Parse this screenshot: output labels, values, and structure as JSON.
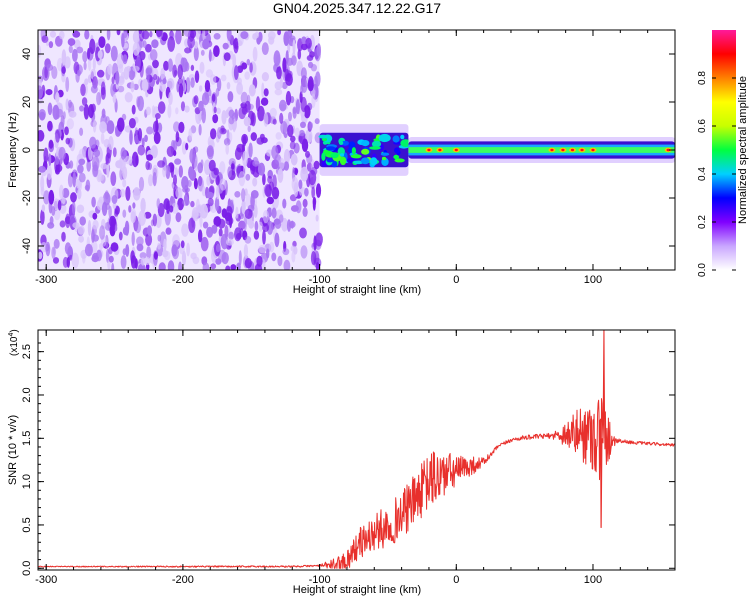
{
  "title": "GN04.2025.347.12.22.G17",
  "chart_data": [
    {
      "type": "heatmap",
      "xlabel": "Height of straight line (km)",
      "ylabel": "Frequency (Hz)",
      "xlim": [
        -306,
        160
      ],
      "ylim": [
        -50,
        50
      ],
      "x_ticks": [
        -300,
        -200,
        -100,
        0,
        100
      ],
      "x_tick_labels": [
        "-300",
        "-200",
        "-100",
        "0",
        "100"
      ],
      "y_ticks": [
        -40,
        -20,
        0,
        20,
        40
      ],
      "y_tick_labels": [
        "-40",
        "-20",
        "0",
        "20",
        "40"
      ],
      "noise_region": {
        "x_from": -306,
        "x_to": -100,
        "y_from": -50,
        "y_to": 50
      },
      "band_segments": [
        {
          "x_from": -100,
          "x_to": -35,
          "half_width_hz": 6,
          "style": "scattered"
        },
        {
          "x_from": -35,
          "x_to": 160,
          "half_width_hz": 3,
          "style": "steady"
        }
      ],
      "hot_spots": [
        -20,
        -12,
        0,
        70,
        78,
        85,
        92,
        100,
        155
      ],
      "colorbar": {
        "label": "Normalized spectral amplitude",
        "range": [
          0,
          1
        ],
        "ticks": [
          0.0,
          0.2,
          0.4,
          0.6,
          0.8
        ],
        "tick_labels": [
          "0.0",
          "0.2",
          "0.4",
          "0.6",
          "0.8"
        ],
        "colormap": [
          "#ffffff",
          "#c9a6ff",
          "#8000ff",
          "#0000ff",
          "#00d0ff",
          "#00ff40",
          "#c8ff00",
          "#ffff00",
          "#ff8000",
          "#ff0000",
          "#ff1a9a"
        ]
      },
      "grid": false
    },
    {
      "type": "line",
      "xlabel": "Height of straight line (km)",
      "ylabel": "SNR (10 * v/v)",
      "multiplier_base": "(x10",
      "multiplier_exp": "4",
      "multiplier_close": ")",
      "xlim": [
        -306,
        160
      ],
      "ylim": [
        -0.02,
        2.75
      ],
      "x_ticks": [
        -300,
        -200,
        -100,
        0,
        100
      ],
      "x_tick_labels": [
        "-300",
        "-200",
        "-100",
        "0",
        "100"
      ],
      "y_ticks": [
        0.0,
        0.5,
        1.0,
        1.5,
        2.0,
        2.5
      ],
      "y_tick_labels": [
        "0.0",
        "0.5",
        "1.0",
        "1.5",
        "2.0",
        "2.5"
      ],
      "series": [
        {
          "color": "#e8302c",
          "points": [
            [
              -306,
              0.02
            ],
            [
              -250,
              0.02
            ],
            [
              -200,
              0.02
            ],
            [
              -150,
              0.02
            ],
            [
              -120,
              0.02
            ],
            [
              -100,
              0.03
            ],
            [
              -90,
              0.04
            ],
            [
              -85,
              0.05
            ],
            [
              -80,
              0.1
            ],
            [
              -75,
              0.2
            ],
            [
              -70,
              0.3
            ],
            [
              -65,
              0.35
            ],
            [
              -60,
              0.4
            ],
            [
              -55,
              0.45
            ],
            [
              -50,
              0.5
            ],
            [
              -45,
              0.55
            ],
            [
              -40,
              0.62
            ],
            [
              -35,
              0.7
            ],
            [
              -30,
              0.8
            ],
            [
              -25,
              0.9
            ],
            [
              -20,
              1.0
            ],
            [
              -15,
              1.05
            ],
            [
              -10,
              1.08
            ],
            [
              -5,
              1.1
            ],
            [
              0,
              1.12
            ],
            [
              5,
              1.15
            ],
            [
              10,
              1.18
            ],
            [
              15,
              1.2
            ],
            [
              20,
              1.23
            ],
            [
              25,
              1.3
            ],
            [
              30,
              1.4
            ],
            [
              40,
              1.48
            ],
            [
              50,
              1.51
            ],
            [
              60,
              1.52
            ],
            [
              70,
              1.53
            ],
            [
              80,
              1.55
            ],
            [
              90,
              1.56
            ],
            [
              100,
              1.55
            ],
            [
              110,
              1.5
            ],
            [
              120,
              1.47
            ],
            [
              130,
              1.45
            ],
            [
              140,
              1.44
            ],
            [
              150,
              1.43
            ],
            [
              160,
              1.42
            ]
          ],
          "noise_amplitude": [
            [
              -306,
              0.005
            ],
            [
              -100,
              0.01
            ],
            [
              -85,
              0.1
            ],
            [
              -70,
              0.18
            ],
            [
              -50,
              0.25
            ],
            [
              -30,
              0.3
            ],
            [
              -15,
              0.35
            ],
            [
              0,
              0.18
            ],
            [
              10,
              0.12
            ],
            [
              20,
              0.05
            ],
            [
              30,
              0.02
            ],
            [
              70,
              0.03
            ],
            [
              80,
              0.15
            ],
            [
              90,
              0.3
            ],
            [
              100,
              0.45
            ],
            [
              105,
              0.6
            ],
            [
              110,
              0.35
            ],
            [
              115,
              0.08
            ],
            [
              120,
              0.02
            ],
            [
              160,
              0.015
            ]
          ],
          "peak_max": [
            108,
            2.75
          ],
          "peak_min": [
            106,
            0.47
          ]
        }
      ],
      "grid": false
    }
  ]
}
